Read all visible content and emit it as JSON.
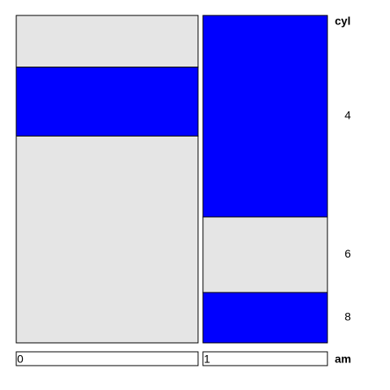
{
  "chart_data": {
    "type": "mosaic",
    "x_label": "am",
    "y_label": "cyl",
    "categories": [
      "0",
      "1"
    ],
    "series": [
      {
        "name": "4",
        "values": [
          3,
          8
        ]
      },
      {
        "name": "6",
        "values": [
          4,
          3
        ]
      },
      {
        "name": "8",
        "values": [
          12,
          2
        ]
      }
    ],
    "cell_colors": [
      [
        "#e5e5e5",
        "#0000ff",
        "#e5e5e5"
      ],
      [
        "#0000ff",
        "#e5e5e5",
        "#0000ff"
      ]
    ]
  }
}
